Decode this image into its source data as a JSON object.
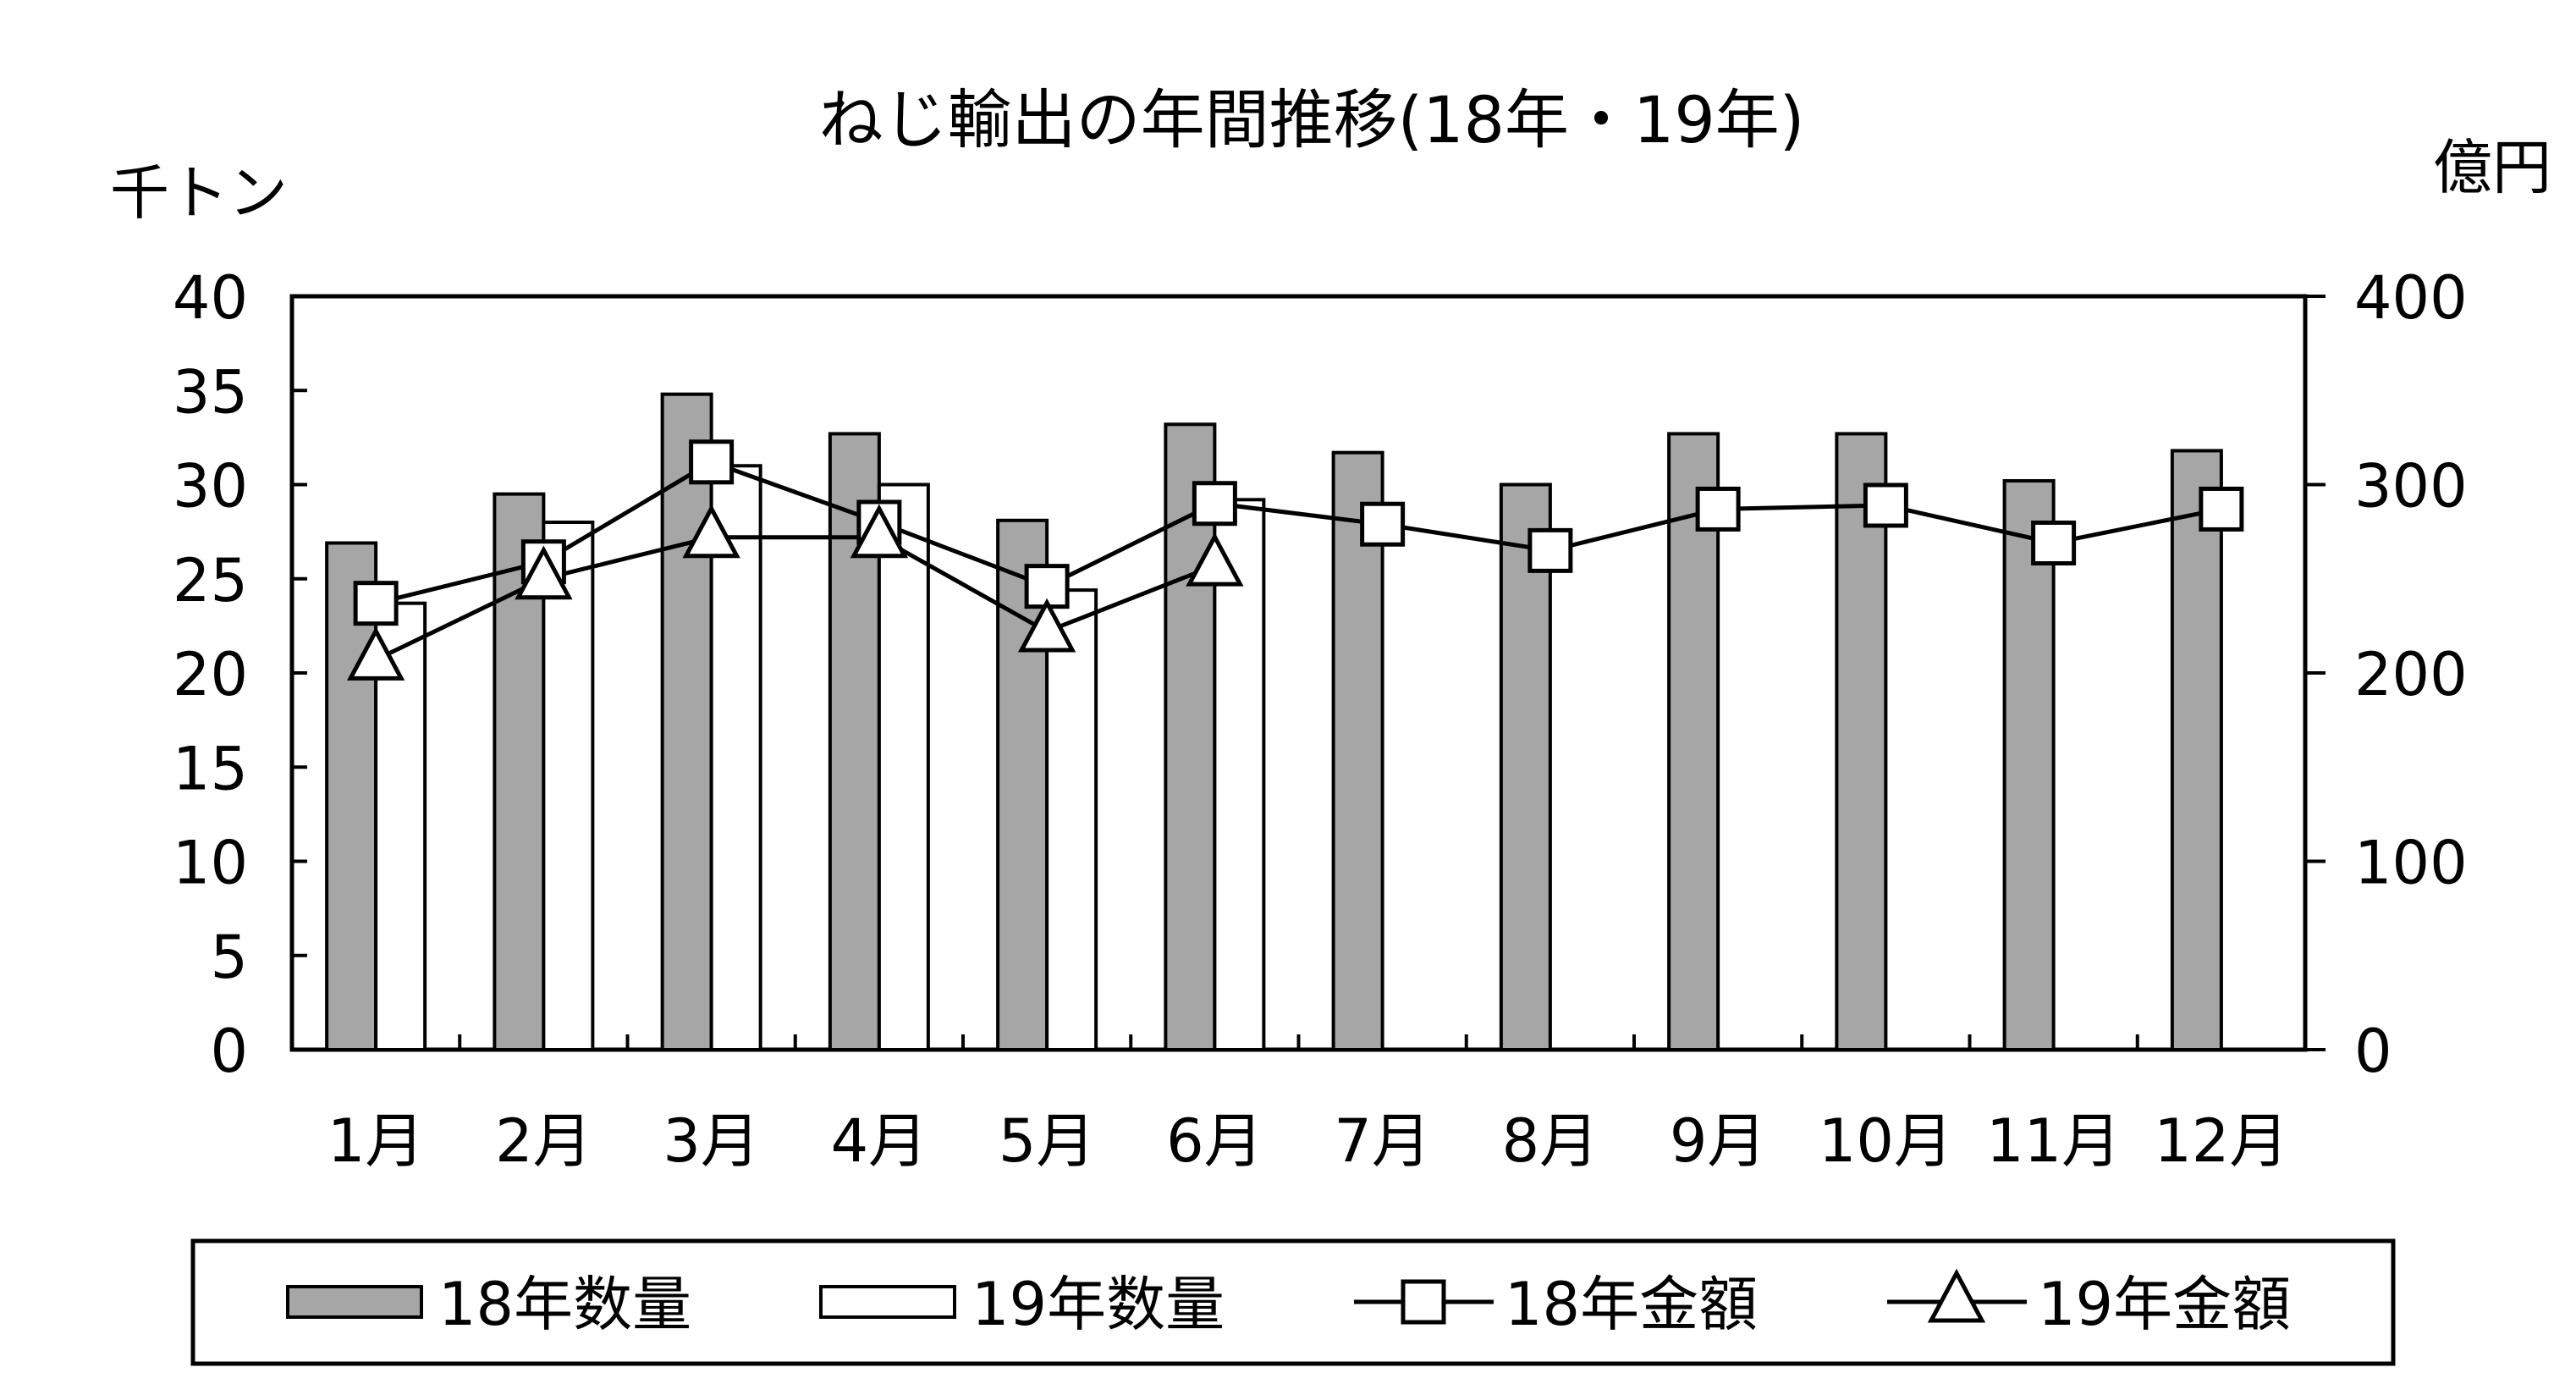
{
  "chart_data": {
    "type": "bar",
    "title": "ねじ輸出の年間推移(18年・19年)",
    "ylabel_left": "千トン",
    "ylabel_right": "億円",
    "ylim_left": [
      0,
      40
    ],
    "ylim_right": [
      0,
      400
    ],
    "yticks_left": [
      "0",
      "5",
      "10",
      "15",
      "20",
      "25",
      "30",
      "35",
      "40"
    ],
    "yticks_right": [
      "0",
      "100",
      "200",
      "300",
      "400"
    ],
    "grid": false,
    "legend_position": "bottom",
    "categories": [
      "1月",
      "2月",
      "3月",
      "4月",
      "5月",
      "6月",
      "7月",
      "8月",
      "9月",
      "10月",
      "11月",
      "12月"
    ],
    "series": [
      {
        "name": "18年数量",
        "type": "bar",
        "axis": "left",
        "color": "#a6a6a6",
        "values": [
          26.9,
          29.5,
          34.8,
          32.7,
          28.1,
          33.2,
          31.7,
          30.0,
          32.7,
          32.7,
          30.2,
          31.8
        ]
      },
      {
        "name": "19年数量",
        "type": "bar",
        "axis": "left",
        "color": "#ffffff",
        "values": [
          23.7,
          28.0,
          31.0,
          30.0,
          24.4,
          29.2,
          null,
          null,
          null,
          null,
          null,
          null
        ]
      },
      {
        "name": "18年金額",
        "type": "line",
        "axis": "right",
        "marker": "square",
        "values": [
          237,
          259,
          312,
          280,
          246,
          290,
          279,
          265,
          287,
          289,
          269,
          287
        ]
      },
      {
        "name": "19年金額",
        "type": "line",
        "axis": "right",
        "marker": "triangle",
        "values": [
          207,
          250,
          272,
          272,
          222,
          257,
          null,
          null,
          null,
          null,
          null,
          null
        ]
      }
    ]
  }
}
